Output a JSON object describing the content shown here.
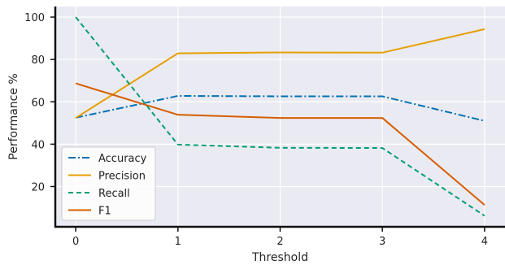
{
  "chart_data": {
    "type": "line",
    "title": "",
    "xlabel": "Threshold",
    "ylabel": "Performance %",
    "x": [
      0,
      1,
      2,
      3,
      4
    ],
    "xticks": [
      "0",
      "1",
      "2",
      "3",
      "4"
    ],
    "yticks": [
      "20",
      "40",
      "60",
      "80",
      "100"
    ],
    "xlim": [
      -0.2,
      4.2
    ],
    "ylim": [
      1,
      105
    ],
    "grid": true,
    "legend_position": "lower-left",
    "series": [
      {
        "name": "Accuracy",
        "values": [
          52.5,
          62.8,
          62.6,
          62.6,
          51.0
        ],
        "color": "#0072b2",
        "dash": "dashdot"
      },
      {
        "name": "Precision",
        "values": [
          52.4,
          82.9,
          83.3,
          83.2,
          94.3
        ],
        "color": "#e69f00",
        "dash": "solid"
      },
      {
        "name": "Recall",
        "values": [
          100.0,
          39.8,
          38.3,
          38.2,
          6.2
        ],
        "color": "#009e73",
        "dash": "dashed"
      },
      {
        "name": "F1",
        "values": [
          68.7,
          53.9,
          52.4,
          52.4,
          11.3
        ],
        "color": "#d55e00",
        "dash": "solid"
      }
    ]
  }
}
